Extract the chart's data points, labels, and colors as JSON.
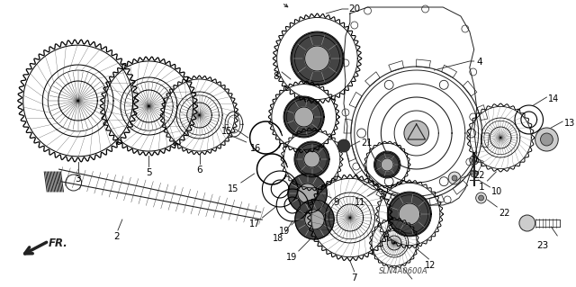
{
  "bg_color": "#ffffff",
  "line_color": "#222222",
  "figure_width": 6.4,
  "figure_height": 3.19,
  "dpi": 100,
  "watermark": "SLN4A0600A",
  "arrow_label": "FR."
}
